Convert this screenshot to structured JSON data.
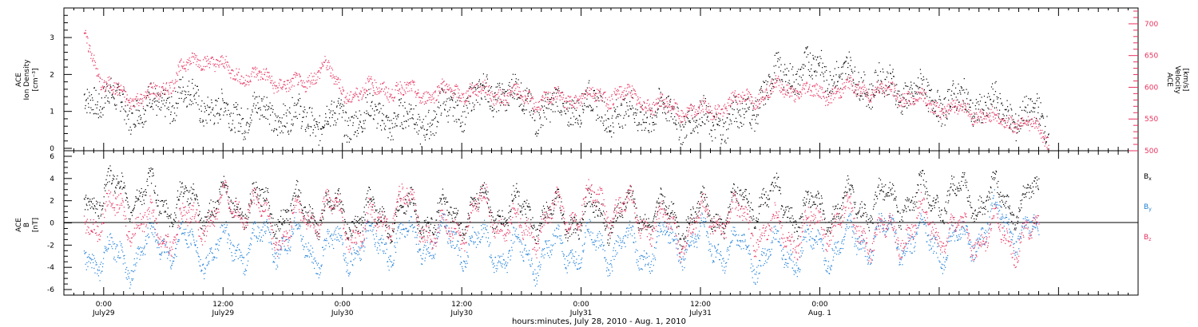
{
  "chart_data": [
    {
      "type": "scatter",
      "panel": "top",
      "ylabel_left": [
        "ACE",
        "Ion Density",
        "[cm⁻³]"
      ],
      "ylabel_right": [
        "ACE",
        "Velocity",
        "[km/s]"
      ],
      "ylim_left": [
        0,
        3.8
      ],
      "ylim_right": [
        500,
        725
      ],
      "left_ticks": [
        "0",
        "1",
        "2",
        "3"
      ],
      "left_tick_values": [
        0,
        1,
        2,
        3
      ],
      "right_ticks": [
        "500",
        "550",
        "600",
        "650",
        "700"
      ],
      "right_tick_values": [
        500,
        550,
        600,
        650,
        700
      ],
      "series": [
        {
          "axis": "left",
          "color": "#000000",
          "x": [
            -2,
            2,
            4,
            6,
            9,
            12,
            16,
            20,
            24,
            28,
            32,
            36,
            40,
            44,
            48,
            52,
            56,
            60,
            64,
            68,
            72,
            76,
            80,
            84,
            88,
            92,
            95
          ],
          "values": [
            1.5,
            1.2,
            1.0,
            1.3,
            1.4,
            0.9,
            1.0,
            0.8,
            0.8,
            0.9,
            0.7,
            1.2,
            1.6,
            1.0,
            1.2,
            0.9,
            1.0,
            0.7,
            0.8,
            2.0,
            2.2,
            1.8,
            1.6,
            1.3,
            1.2,
            0.9,
            0.8
          ]
        },
        {
          "axis": "right",
          "color": "#e8325f",
          "x": [
            -2,
            0,
            2,
            4,
            6,
            8,
            10,
            12,
            14,
            16,
            20,
            22,
            24,
            28,
            32,
            36,
            40,
            44,
            48,
            52,
            56,
            60,
            64,
            68,
            72,
            76,
            80,
            84,
            88,
            90,
            92,
            95
          ],
          "values": [
            690,
            600,
            590,
            580,
            600,
            630,
            650,
            630,
            620,
            615,
            600,
            640,
            590,
            600,
            590,
            595,
            590,
            580,
            585,
            590,
            570,
            560,
            580,
            600,
            590,
            600,
            590,
            570,
            560,
            545,
            550,
            520
          ]
        }
      ]
    },
    {
      "type": "scatter",
      "panel": "bottom",
      "ylabel_left": [
        "ACE",
        "B",
        "[nT]"
      ],
      "ylim": [
        -6.5,
        6.5
      ],
      "left_ticks": [
        "-6",
        "-4",
        "-2",
        "0",
        "2",
        "4",
        "6"
      ],
      "left_tick_values": [
        -6,
        -4,
        -2,
        0,
        2,
        4,
        6
      ],
      "series": [
        {
          "name": "Bx",
          "color": "#000000",
          "x": [
            -2,
            2,
            6,
            10,
            14,
            18,
            22,
            26,
            30,
            34,
            38,
            42,
            46,
            50,
            54,
            58,
            62,
            66,
            70,
            74,
            78,
            82,
            86,
            90,
            94
          ],
          "values": [
            2.5,
            3.0,
            2.0,
            1.5,
            2.0,
            1.0,
            1.2,
            0.5,
            1.0,
            0.5,
            1.5,
            1.0,
            0.5,
            0.8,
            1.0,
            0.5,
            0.8,
            2.5,
            1.0,
            1.5,
            2.0,
            2.2,
            2.5,
            2.0,
            2.0
          ]
        },
        {
          "name": "By",
          "color": "#1e7fd8",
          "x": [
            -2,
            2,
            6,
            10,
            14,
            18,
            22,
            26,
            30,
            34,
            38,
            42,
            46,
            50,
            54,
            58,
            62,
            66,
            70,
            74,
            78,
            82,
            86,
            90,
            94
          ],
          "values": [
            -2.5,
            -3.5,
            -1.5,
            -2.5,
            -2.0,
            -1.5,
            -2.5,
            -2.0,
            -1.5,
            -1.5,
            -2.0,
            -3.0,
            -2.5,
            -2.0,
            -2.5,
            -1.5,
            -2.0,
            -3.0,
            -2.5,
            -2.0,
            -1.0,
            -1.5,
            -2.0,
            0.5,
            -1.5
          ]
        },
        {
          "name": "Bz",
          "color": "#e8325f",
          "x": [
            -2,
            2,
            6,
            10,
            14,
            18,
            22,
            26,
            30,
            34,
            38,
            42,
            46,
            50,
            54,
            58,
            62,
            66,
            70,
            74,
            78,
            82,
            86,
            90,
            94
          ],
          "values": [
            0.5,
            1.0,
            -1.0,
            0.5,
            2.0,
            -1.0,
            1.5,
            -1.0,
            2.0,
            -1.5,
            1.5,
            -1.0,
            1.0,
            2.0,
            0.5,
            -1.0,
            1.0,
            -0.5,
            -1.0,
            0.5,
            -1.5,
            0.0,
            -1.0,
            -1.0,
            -1.5
          ]
        }
      ]
    }
  ],
  "legend": {
    "bx_base": "B",
    "bx_sub": "x",
    "by_base": "B",
    "by_sub": "y",
    "bz_base": "B",
    "bz_sub": "z"
  },
  "x_axis": {
    "xlim": [
      -4,
      104
    ],
    "major_x": [
      0,
      12,
      24,
      36,
      48,
      60,
      72,
      84,
      96
    ],
    "tick_labels": [
      [
        "0:00",
        "July29"
      ],
      [
        "12:00",
        "July29"
      ],
      [
        "0:00",
        "July30"
      ],
      [
        "12:00",
        "July30"
      ],
      [
        "0:00",
        "July31"
      ],
      [
        "12:00",
        "July31"
      ],
      [
        "0:00",
        "Aug. 1"
      ]
    ],
    "tick_label_x": [
      0,
      12,
      24,
      36,
      48,
      60,
      72
    ],
    "title": "hours:minutes, July 28, 2010 - Aug.  1, 2010"
  },
  "colors": {
    "black_series": "#000000",
    "pink_series": "#e8325f",
    "blue_series": "#1e7fd8",
    "axis": "#000000"
  }
}
